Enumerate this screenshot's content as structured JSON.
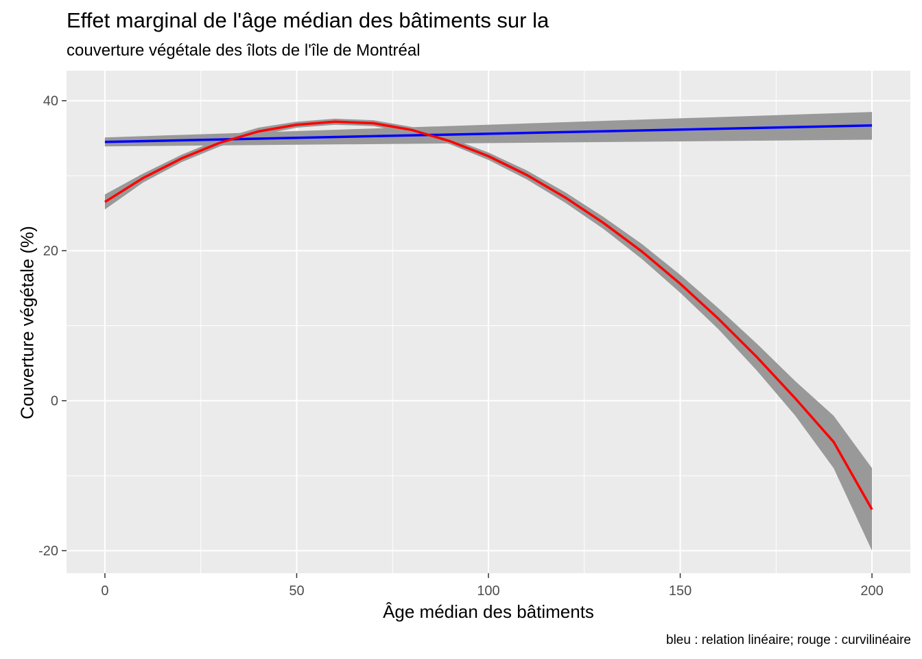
{
  "chart_data": {
    "type": "line",
    "title": "Effet marginal de l'âge médian des bâtiments sur la",
    "subtitle": "couverture végétale des îlots de l'île de Montréal",
    "caption": "bleu : relation linéaire; rouge : curvilinéaire",
    "xlabel": "Âge médian des bâtiments",
    "ylabel": "Couverture végétale (%)",
    "xlim": [
      -10,
      210
    ],
    "ylim": [
      -23,
      44
    ],
    "x_ticks": [
      0,
      50,
      100,
      150,
      200
    ],
    "x_tick_labels": [
      "0",
      "50",
      "100",
      "150",
      "200"
    ],
    "y_ticks": [
      -20,
      0,
      20,
      40
    ],
    "y_tick_labels": [
      "-20",
      "0",
      "20",
      "40"
    ],
    "grid": true,
    "colors": {
      "panel": "#ebebeb",
      "grid": "#ffffff",
      "band": "#999999",
      "linear": "#0000ff",
      "curvilinear": "#ff0000",
      "axis_text": "#4d4d4d"
    },
    "series": [
      {
        "color": "#0000ff",
        "x": [
          0,
          200
        ],
        "y": [
          34.5,
          36.7
        ],
        "ci_lower": [
          33.9,
          34.8
        ],
        "ci_upper": [
          35.1,
          38.5
        ]
      },
      {
        "color": "#ff0000",
        "x": [
          0,
          10,
          20,
          30,
          40,
          50,
          60,
          70,
          80,
          90,
          100,
          110,
          120,
          130,
          140,
          150,
          160,
          170,
          180,
          190,
          200
        ],
        "y": [
          26.5,
          29.7,
          32.3,
          34.4,
          35.9,
          36.8,
          37.2,
          37.0,
          36.1,
          34.6,
          32.6,
          30.1,
          27.1,
          23.7,
          19.9,
          15.6,
          10.9,
          5.8,
          0.3,
          -5.5,
          -14.5
        ],
        "ci_lower": [
          25.5,
          29.1,
          31.8,
          33.9,
          35.4,
          36.4,
          36.8,
          36.6,
          35.7,
          34.2,
          32.1,
          29.5,
          26.4,
          22.9,
          18.9,
          14.4,
          9.5,
          4.0,
          -2.0,
          -9.0,
          -20.0
        ],
        "ci_upper": [
          27.5,
          30.3,
          32.8,
          34.9,
          36.4,
          37.2,
          37.6,
          37.4,
          36.5,
          35.0,
          33.1,
          30.7,
          27.8,
          24.5,
          20.9,
          16.8,
          12.3,
          7.6,
          2.6,
          -2.0,
          -9.0
        ]
      }
    ]
  }
}
